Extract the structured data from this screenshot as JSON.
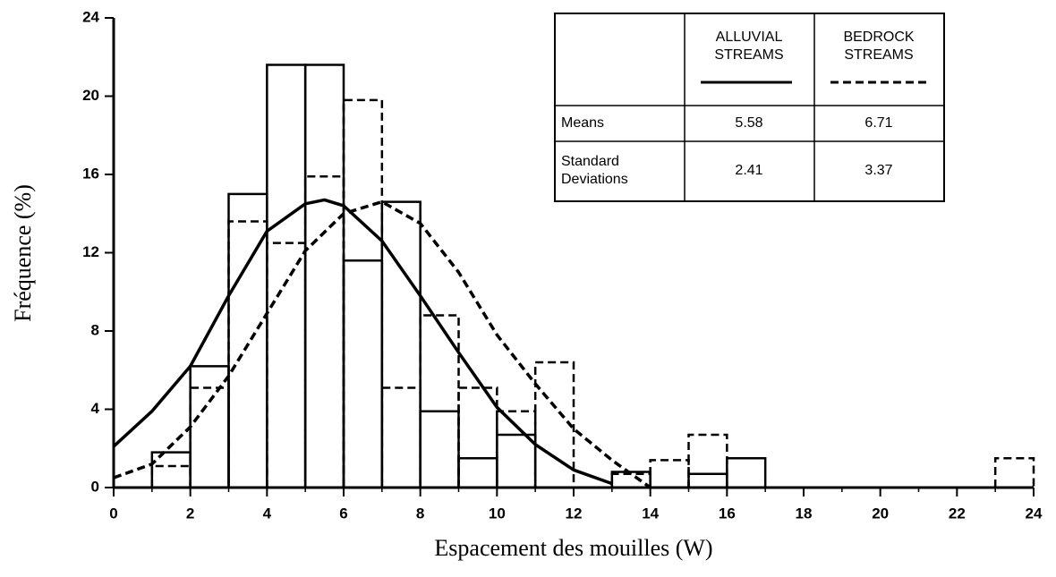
{
  "chart_data": {
    "type": "histogram",
    "xlabel": "Espacement des mouilles (W)",
    "ylabel": "Fréquence (%)",
    "bins": [
      0,
      1,
      2,
      3,
      4,
      5,
      6,
      7,
      8,
      9,
      10,
      11,
      12,
      13,
      14,
      15,
      16,
      17,
      18,
      19,
      20,
      21,
      22,
      23,
      24
    ],
    "series": [
      {
        "name": "ALLUVIAL STREAMS",
        "color": "#000000",
        "dashed": false,
        "values": [
          0,
          1.8,
          6.2,
          15,
          21.6,
          21.6,
          11.6,
          14.6,
          3.9,
          1.5,
          2.7,
          0,
          0,
          0.8,
          0,
          0.7,
          1.5,
          0,
          0,
          0,
          0,
          0,
          0,
          0
        ]
      },
      {
        "name": "BEDROCK STREAMS",
        "color": "#000000",
        "dashed": true,
        "values": [
          0,
          1.1,
          5.1,
          13.6,
          12.5,
          15.9,
          19.8,
          5.1,
          8.8,
          5.1,
          3.9,
          6.4,
          0,
          0.7,
          1.4,
          2.7,
          0,
          0,
          0,
          0,
          0,
          0,
          0,
          1.5
        ]
      }
    ],
    "curves": [
      {
        "x": [
          0,
          1,
          2,
          3,
          4,
          5,
          5.5,
          6,
          7,
          8,
          9,
          10,
          11,
          12,
          13
        ],
        "values": [
          2.1,
          3.9,
          6.2,
          9.8,
          13.1,
          14.5,
          14.7,
          14.4,
          12.6,
          9.8,
          6.9,
          4.1,
          2.2,
          0.9,
          0.2
        ]
      },
      {
        "x": [
          0,
          1,
          2,
          3,
          4,
          5,
          6,
          7,
          8,
          9,
          10,
          11,
          12,
          13,
          14
        ],
        "values": [
          0.5,
          1.2,
          3.1,
          5.7,
          8.9,
          12.1,
          14,
          14.6,
          13.5,
          11,
          7.8,
          5.3,
          3,
          1.4,
          0
        ]
      }
    ],
    "xlim": [
      0,
      24
    ],
    "ylim": [
      0,
      24
    ],
    "xticks": [
      0,
      2,
      4,
      6,
      8,
      10,
      12,
      14,
      16,
      18,
      20,
      22,
      24
    ],
    "yticks": [
      0,
      4,
      8,
      12,
      16,
      20,
      24
    ],
    "table": {
      "rows": [
        {
          "label": "Means",
          "values": [
            5.58,
            6.71
          ]
        },
        {
          "label": "Standard Deviations",
          "values": [
            2.41,
            3.37
          ]
        }
      ]
    }
  }
}
